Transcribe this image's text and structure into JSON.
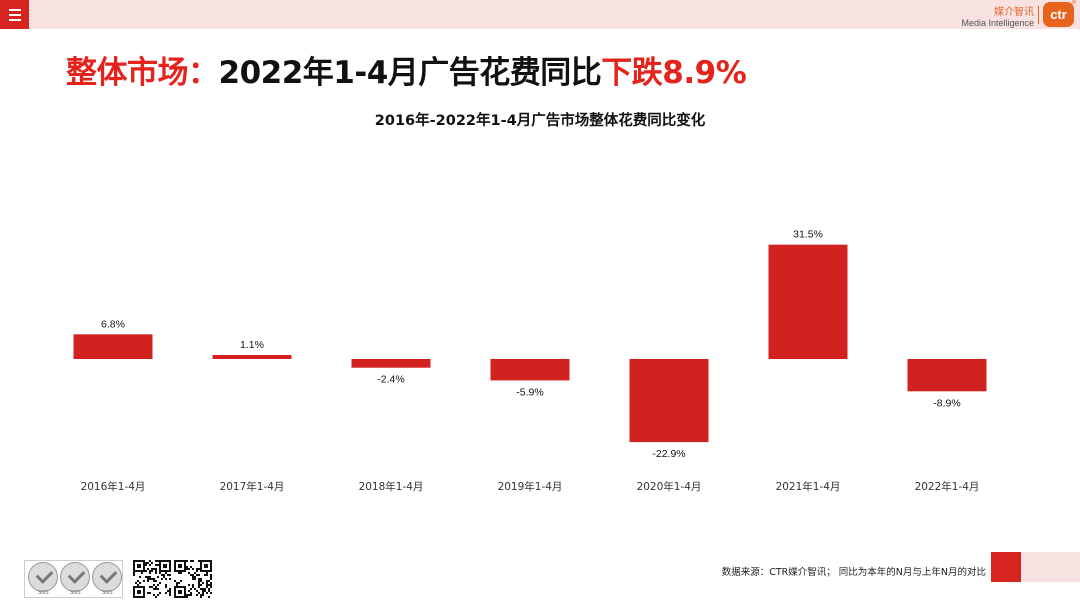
{
  "header": {
    "brand_cn": "媒介智讯",
    "brand_en": "Media Intelligence",
    "logo_text": "ctr",
    "logo_reg": "®"
  },
  "headline": {
    "part1": "整体市场：",
    "part2": "2022年1-4月广告花费同比",
    "part3": "下跌8.9%"
  },
  "chart_data": {
    "type": "bar",
    "title": "2016年-2022年1-4月广告市场整体花费同比变化",
    "categories": [
      "2016年1-4月",
      "2017年1-4月",
      "2018年1-4月",
      "2019年1-4月",
      "2020年1-4月",
      "2021年1-4月",
      "2022年1-4月"
    ],
    "values": [
      6.8,
      1.1,
      -2.4,
      -5.9,
      -22.9,
      31.5,
      -8.9
    ],
    "labels": [
      "6.8%",
      "1.1%",
      "-2.4%",
      "-5.9%",
      "-22.9%",
      "31.5%",
      "-8.9%"
    ],
    "ylim": [
      -25,
      35
    ],
    "grid": false,
    "legend": "none",
    "bar_color": "#d2221f"
  },
  "footer": {
    "source": "数据来源：CTR媒介智讯；  同比为本年的N月与上年N月的对比",
    "cert_label": "SGS"
  }
}
